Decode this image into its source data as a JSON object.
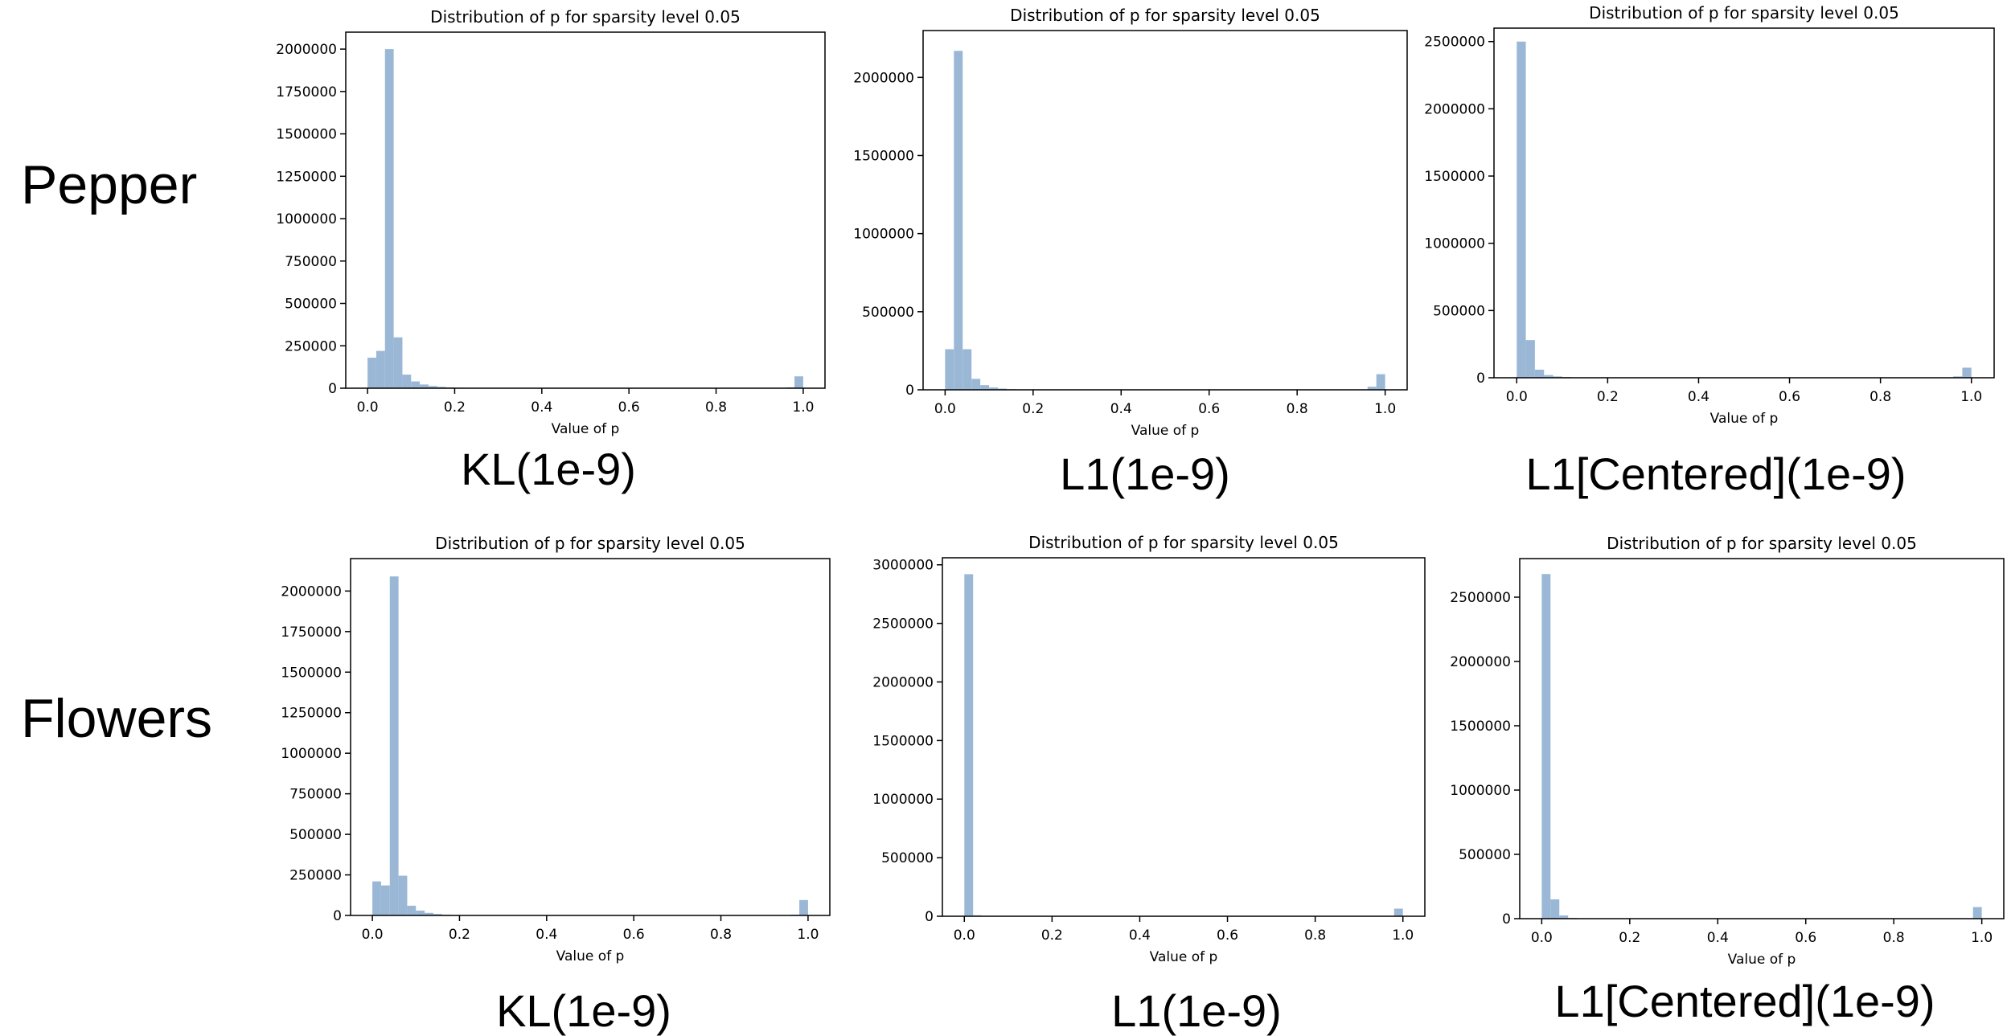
{
  "row_labels": [
    "Pepper",
    "Flowers"
  ],
  "captions": [
    [
      "KL(1e-9)",
      "L1(1e-9)",
      "L1[Centered](1e-9)"
    ],
    [
      "KL(1e-9)",
      "L1(1e-9)",
      "L1[Centered](1e-9)"
    ]
  ],
  "colors": {
    "bar": "#9ab8d6",
    "axis": "#000000"
  },
  "chart_data": [
    {
      "type": "bar",
      "row": "Pepper",
      "caption": "KL(1e-9)",
      "title": "Distribution of p for sparsity level 0.05",
      "xlabel": "Value of p",
      "ylabel": "",
      "xlim": [
        -0.05,
        1.05
      ],
      "ylim": [
        0,
        2100000
      ],
      "xticks": [
        "0.0",
        "0.2",
        "0.4",
        "0.6",
        "0.8",
        "1.0"
      ],
      "yticks": [
        0,
        250000,
        500000,
        750000,
        1000000,
        1250000,
        1500000,
        1750000,
        2000000
      ],
      "bin_width": 0.02,
      "bins": [
        {
          "x": 0.0,
          "value": 180000
        },
        {
          "x": 0.02,
          "value": 220000
        },
        {
          "x": 0.04,
          "value": 2000000
        },
        {
          "x": 0.06,
          "value": 300000
        },
        {
          "x": 0.08,
          "value": 80000
        },
        {
          "x": 0.1,
          "value": 40000
        },
        {
          "x": 0.12,
          "value": 22000
        },
        {
          "x": 0.14,
          "value": 13000
        },
        {
          "x": 0.16,
          "value": 8000
        },
        {
          "x": 0.18,
          "value": 5000
        },
        {
          "x": 0.2,
          "value": 3000
        },
        {
          "x": 0.22,
          "value": 2000
        },
        {
          "x": 0.96,
          "value": 5000
        },
        {
          "x": 0.98,
          "value": 70000
        }
      ]
    },
    {
      "type": "bar",
      "row": "Pepper",
      "caption": "L1(1e-9)",
      "title": "Distribution of p for sparsity level 0.05",
      "xlabel": "Value of p",
      "ylabel": "",
      "xlim": [
        -0.05,
        1.05
      ],
      "ylim": [
        0,
        2300000
      ],
      "xticks": [
        "0.0",
        "0.2",
        "0.4",
        "0.6",
        "0.8",
        "1.0"
      ],
      "yticks": [
        0,
        500000,
        1000000,
        1500000,
        2000000
      ],
      "bin_width": 0.02,
      "bins": [
        {
          "x": 0.0,
          "value": 260000
        },
        {
          "x": 0.02,
          "value": 2170000
        },
        {
          "x": 0.04,
          "value": 260000
        },
        {
          "x": 0.06,
          "value": 70000
        },
        {
          "x": 0.08,
          "value": 30000
        },
        {
          "x": 0.1,
          "value": 15000
        },
        {
          "x": 0.12,
          "value": 8000
        },
        {
          "x": 0.14,
          "value": 4000
        },
        {
          "x": 0.16,
          "value": 2000
        },
        {
          "x": 0.96,
          "value": 20000
        },
        {
          "x": 0.98,
          "value": 100000
        }
      ]
    },
    {
      "type": "bar",
      "row": "Pepper",
      "caption": "L1[Centered](1e-9)",
      "title": "Distribution of p for sparsity level 0.05",
      "xlabel": "Value of p",
      "ylabel": "",
      "xlim": [
        -0.05,
        1.05
      ],
      "ylim": [
        0,
        2600000
      ],
      "xticks": [
        "0.0",
        "0.2",
        "0.4",
        "0.6",
        "0.8",
        "1.0"
      ],
      "yticks": [
        0,
        500000,
        1000000,
        1500000,
        2000000,
        2500000
      ],
      "bin_width": 0.02,
      "bins": [
        {
          "x": 0.0,
          "value": 2500000
        },
        {
          "x": 0.02,
          "value": 280000
        },
        {
          "x": 0.04,
          "value": 60000
        },
        {
          "x": 0.06,
          "value": 20000
        },
        {
          "x": 0.08,
          "value": 10000
        },
        {
          "x": 0.1,
          "value": 6000
        },
        {
          "x": 0.12,
          "value": 3000
        },
        {
          "x": 0.14,
          "value": 2000
        },
        {
          "x": 0.96,
          "value": 10000
        },
        {
          "x": 0.98,
          "value": 75000
        }
      ]
    },
    {
      "type": "bar",
      "row": "Flowers",
      "caption": "KL(1e-9)",
      "title": "Distribution of p for sparsity level 0.05",
      "xlabel": "Value of p",
      "ylabel": "",
      "xlim": [
        -0.05,
        1.05
      ],
      "ylim": [
        0,
        2200000
      ],
      "xticks": [
        "0.0",
        "0.2",
        "0.4",
        "0.6",
        "0.8",
        "1.0"
      ],
      "yticks": [
        0,
        250000,
        500000,
        750000,
        1000000,
        1250000,
        1500000,
        1750000,
        2000000
      ],
      "bin_width": 0.02,
      "bins": [
        {
          "x": 0.0,
          "value": 210000
        },
        {
          "x": 0.02,
          "value": 185000
        },
        {
          "x": 0.04,
          "value": 2090000
        },
        {
          "x": 0.06,
          "value": 245000
        },
        {
          "x": 0.08,
          "value": 60000
        },
        {
          "x": 0.1,
          "value": 30000
        },
        {
          "x": 0.12,
          "value": 16000
        },
        {
          "x": 0.14,
          "value": 9000
        },
        {
          "x": 0.16,
          "value": 5000
        },
        {
          "x": 0.18,
          "value": 3000
        },
        {
          "x": 0.2,
          "value": 2000
        },
        {
          "x": 0.96,
          "value": 5000
        },
        {
          "x": 0.98,
          "value": 95000
        }
      ]
    },
    {
      "type": "bar",
      "row": "Flowers",
      "caption": "L1(1e-9)",
      "title": "Distribution of p for sparsity level 0.05",
      "xlabel": "Value of p",
      "ylabel": "",
      "xlim": [
        -0.05,
        1.05
      ],
      "ylim": [
        0,
        3060000
      ],
      "xticks": [
        "0.0",
        "0.2",
        "0.4",
        "0.6",
        "0.8",
        "1.0"
      ],
      "yticks": [
        0,
        500000,
        1000000,
        1500000,
        2000000,
        2500000,
        3000000
      ],
      "bin_width": 0.02,
      "bins": [
        {
          "x": 0.0,
          "value": 2920000
        },
        {
          "x": 0.02,
          "value": 8000
        },
        {
          "x": 0.98,
          "value": 65000
        }
      ]
    },
    {
      "type": "bar",
      "row": "Flowers",
      "caption": "L1[Centered](1e-9)",
      "title": "Distribution of p for sparsity level 0.05",
      "xlabel": "Value of p",
      "ylabel": "",
      "xlim": [
        -0.05,
        1.05
      ],
      "ylim": [
        0,
        2800000
      ],
      "xticks": [
        "0.0",
        "0.2",
        "0.4",
        "0.6",
        "0.8",
        "1.0"
      ],
      "yticks": [
        0,
        500000,
        1000000,
        1500000,
        2000000,
        2500000
      ],
      "bin_width": 0.02,
      "bins": [
        {
          "x": 0.0,
          "value": 2680000
        },
        {
          "x": 0.02,
          "value": 150000
        },
        {
          "x": 0.04,
          "value": 25000
        },
        {
          "x": 0.06,
          "value": 6000
        },
        {
          "x": 0.08,
          "value": 2000
        },
        {
          "x": 0.98,
          "value": 90000
        }
      ]
    }
  ]
}
